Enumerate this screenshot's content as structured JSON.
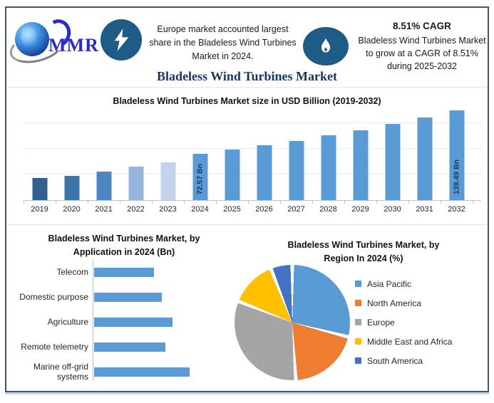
{
  "title": "Bladeless Wind Turbines Market",
  "header": {
    "logo_text": "MMR",
    "headline": "Europe market accounted largest share in the Bladeless Wind Turbines Market in 2024.",
    "cagr_title": "8.51% CAGR",
    "cagr_text": "Bladeless Wind Turbines Market to grow at a CAGR of 8.51% during 2025-2032",
    "icons": [
      "lightning-bolt-icon",
      "gas-flame-icon"
    ]
  },
  "colors": {
    "frame_border": "#44546A",
    "icon_background": "#1F5C85",
    "accent_blue": "#5B9BD5",
    "title_navy": "#17365D",
    "logo_blue": "#2B2BC8"
  },
  "chart_data": [
    {
      "id": "market_size",
      "type": "bar",
      "title": "Bladeless Wind Turbines Market size in USD Billion (2019-2032)",
      "categories": [
        "2019",
        "2020",
        "2021",
        "2022",
        "2023",
        "2024",
        "2025",
        "2026",
        "2027",
        "2028",
        "2029",
        "2030",
        "2031",
        "2032"
      ],
      "values": [
        34,
        38,
        45,
        52,
        59,
        72.57,
        78.75,
        85.45,
        92.72,
        100.61,
        109.17,
        118.46,
        128.54,
        139.49
      ],
      "value_labels": {
        "2024": "72.57 Bn",
        "2032": "139.49 Bn"
      },
      "values_note": "only 2024 and 2032 are labeled in the image; other values estimated from bar heights",
      "bar_colors": {
        "2019": "#31618F",
        "2020": "#3D74A8",
        "2021": "#4D86C0",
        "2022": "#95B5DC",
        "2023": "#C3D3EA"
      },
      "default_color": "#5B9BD5",
      "ylim": [
        0,
        140
      ],
      "y_gridline_values": [
        40,
        80,
        120
      ],
      "grid": true,
      "xlabel": "",
      "ylabel": ""
    },
    {
      "id": "by_application",
      "type": "bar",
      "orientation": "horizontal",
      "title": "Bladeless Wind Turbines Market, by Application in 2024 (Bn)",
      "title_lines": [
        "Bladeless Wind Turbines Market, by",
        "Application in 2024 (Bn)"
      ],
      "categories": [
        "Telecom",
        "Domestic purpose",
        "Agriculture",
        "Remote telemetry",
        "Marine off-grid systems"
      ],
      "values": [
        11.7,
        13.2,
        15.2,
        13.9,
        18.6
      ],
      "values_note": "no numeric labels in image; values estimated from relative bar lengths",
      "color": "#5B9BD5",
      "grid": false
    },
    {
      "id": "by_region",
      "type": "pie",
      "title": "Bladeless Wind Turbines Market, by Region In 2024 (%)",
      "title_lines": [
        "Bladeless Wind Turbines Market, by",
        "Region In 2024 (%)"
      ],
      "labels": [
        "Asia Pacific",
        "North America",
        "Europe",
        "Middle East and Africa",
        "South America"
      ],
      "values": [
        29,
        20,
        32,
        13,
        6
      ],
      "values_note": "percentages estimated from slice angles",
      "colors": [
        "#5B9BD5",
        "#ED7D31",
        "#A5A5A5",
        "#FFC000",
        "#4472C4"
      ],
      "legend_position": "right"
    }
  ]
}
